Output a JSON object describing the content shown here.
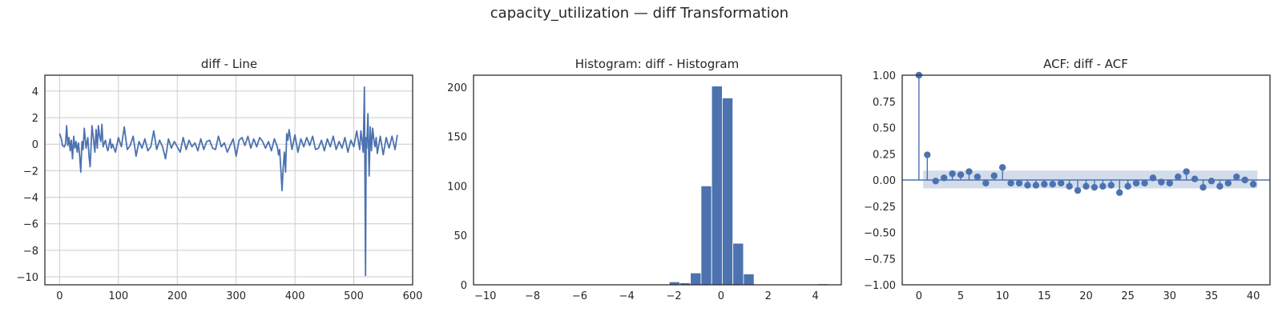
{
  "figure": {
    "suptitle": "capacity_utilization — diff Transformation"
  },
  "colors": {
    "series": "#4c72b0",
    "band": "#4c72b0",
    "grid": "#cccccc",
    "axis": "#262626"
  },
  "chart_data": [
    {
      "type": "line",
      "title": "diff - Line",
      "xlabel": "",
      "ylabel": "",
      "xlim": [
        -25,
        600
      ],
      "ylim": [
        -10.6,
        5.2
      ],
      "xticks": [
        0,
        100,
        200,
        300,
        400,
        500,
        600
      ],
      "yticks": [
        4,
        2,
        0,
        -2,
        -4,
        -6,
        -8,
        -10
      ],
      "grid": true,
      "series": [
        {
          "x": [
            0,
            3,
            5,
            8,
            10,
            12,
            14,
            16,
            18,
            20,
            22,
            24,
            26,
            28,
            30,
            32,
            34,
            36,
            38,
            40,
            42,
            45,
            48,
            50,
            52,
            55,
            58,
            60,
            62,
            64,
            66,
            68,
            70,
            72,
            74,
            76,
            78,
            80,
            82,
            84,
            86,
            88,
            90,
            95,
            100,
            105,
            110,
            115,
            120,
            125,
            130,
            135,
            140,
            145,
            150,
            155,
            160,
            165,
            170,
            175,
            180,
            185,
            190,
            195,
            200,
            205,
            210,
            215,
            220,
            225,
            230,
            235,
            240,
            245,
            250,
            255,
            260,
            265,
            270,
            275,
            280,
            285,
            290,
            295,
            300,
            305,
            310,
            315,
            320,
            325,
            330,
            335,
            340,
            345,
            350,
            355,
            360,
            365,
            370,
            372,
            374,
            376,
            378,
            380,
            382,
            384,
            386,
            388,
            390,
            395,
            400,
            405,
            410,
            415,
            420,
            425,
            430,
            435,
            440,
            445,
            450,
            455,
            460,
            465,
            470,
            475,
            480,
            485,
            490,
            495,
            500,
            505,
            510,
            512,
            514,
            516,
            518,
            520,
            521,
            522,
            524,
            526,
            528,
            530,
            532,
            534,
            536,
            538,
            540,
            545,
            550,
            555,
            560,
            565,
            570,
            574
          ],
          "y": [
            0.8,
            0.4,
            -0.1,
            -0.2,
            0.0,
            1.4,
            -0.1,
            0.5,
            -0.5,
            0.3,
            -1.1,
            0.6,
            -0.3,
            0.2,
            -0.6,
            0.1,
            -0.8,
            -2.1,
            0.2,
            -0.4,
            1.2,
            -0.3,
            0.5,
            -0.9,
            -1.7,
            1.4,
            0.2,
            -0.6,
            1.1,
            -0.3,
            1.4,
            0.6,
            0.2,
            1.5,
            -0.2,
            0.1,
            0.3,
            -0.2,
            -0.5,
            -0.1,
            0.4,
            -0.3,
            0.0,
            -0.6,
            0.5,
            -0.2,
            1.3,
            -0.4,
            -0.1,
            0.6,
            -0.9,
            0.2,
            -0.3,
            0.4,
            -0.5,
            -0.2,
            1.0,
            -0.4,
            0.3,
            -0.2,
            -1.1,
            0.4,
            -0.3,
            0.2,
            -0.2,
            -0.6,
            0.5,
            -0.4,
            0.3,
            -0.2,
            0.1,
            -0.5,
            0.4,
            -0.4,
            0.2,
            0.3,
            -0.3,
            -0.4,
            0.6,
            -0.2,
            0.1,
            -0.6,
            -0.1,
            0.4,
            -0.9,
            0.3,
            0.5,
            -0.1,
            0.6,
            -0.3,
            0.4,
            -0.2,
            0.5,
            0.2,
            -0.3,
            0.2,
            -0.5,
            0.4,
            -0.2,
            -0.8,
            -0.4,
            -1.9,
            -3.5,
            -1.8,
            -0.6,
            -2.1,
            0.8,
            0.3,
            1.1,
            -0.4,
            0.7,
            -0.6,
            0.4,
            -0.2,
            0.5,
            -0.1,
            0.6,
            -0.4,
            -0.3,
            0.3,
            -0.5,
            0.4,
            -0.2,
            0.6,
            -0.4,
            0.2,
            -0.3,
            0.5,
            -0.6,
            0.3,
            -0.2,
            1.0,
            -0.4,
            1.0,
            0.3,
            -0.6,
            4.3,
            -9.9,
            0.5,
            -0.3,
            2.3,
            -2.4,
            1.3,
            -0.5,
            1.2,
            0.4,
            -0.2,
            0.5,
            -0.7,
            0.6,
            -0.8,
            0.5,
            -0.3,
            0.6,
            -0.4,
            0.7
          ]
        }
      ]
    },
    {
      "type": "bar",
      "title": "Histogram: diff - Histogram",
      "xlabel": "",
      "ylabel": "",
      "xlim": [
        -10.5,
        5.1
      ],
      "ylim": [
        0,
        212
      ],
      "xticks": [
        -10,
        -8,
        -6,
        -4,
        -2,
        0,
        2,
        4
      ],
      "yticks": [
        0,
        50,
        100,
        150,
        200
      ],
      "grid": false,
      "bin_width": 0.45,
      "bins": [
        [
          -10.0,
          0
        ],
        [
          -9.55,
          0
        ],
        [
          -9.1,
          0
        ],
        [
          -8.65,
          0
        ],
        [
          -8.2,
          0
        ],
        [
          -7.75,
          0
        ],
        [
          -7.3,
          0
        ],
        [
          -6.85,
          0
        ],
        [
          -6.4,
          0
        ],
        [
          -5.95,
          0
        ],
        [
          -5.5,
          0
        ],
        [
          -5.05,
          0
        ],
        [
          -4.6,
          0
        ],
        [
          -4.15,
          0
        ],
        [
          -3.7,
          0
        ],
        [
          -3.25,
          0
        ],
        [
          -2.8,
          0
        ],
        [
          -2.35,
          0
        ],
        [
          -2.2,
          3
        ],
        [
          -1.75,
          2
        ],
        [
          -1.3,
          12
        ],
        [
          -0.85,
          100
        ],
        [
          -0.4,
          201
        ],
        [
          0.05,
          189
        ],
        [
          0.5,
          42
        ],
        [
          0.95,
          11
        ],
        [
          1.4,
          0
        ],
        [
          1.85,
          0
        ],
        [
          2.3,
          0
        ],
        [
          2.75,
          0
        ],
        [
          3.2,
          0
        ],
        [
          3.65,
          0
        ],
        [
          4.1,
          1
        ]
      ]
    },
    {
      "type": "scatter",
      "title": "ACF: diff - ACF",
      "xlabel": "",
      "ylabel": "",
      "xlim": [
        -2,
        42
      ],
      "ylim": [
        -1.0,
        1.0
      ],
      "xticks": [
        0,
        5,
        10,
        15,
        20,
        25,
        30,
        35,
        40
      ],
      "yticks": [
        1.0,
        0.75,
        0.5,
        0.25,
        0.0,
        -0.25,
        -0.5,
        -0.75,
        -1.0
      ],
      "ytick_labels": [
        "1.00",
        "0.75",
        "0.50",
        "0.25",
        "0.00",
        "−0.25",
        "−0.50",
        "−0.75",
        "−1.00"
      ],
      "grid": false,
      "confidence_band": {
        "from_lag": 0.5,
        "to_lag": 40.5,
        "lower": -0.08,
        "upper": 0.09
      },
      "lags": [
        0,
        1,
        2,
        3,
        4,
        5,
        6,
        7,
        8,
        9,
        10,
        11,
        12,
        13,
        14,
        15,
        16,
        17,
        18,
        19,
        20,
        21,
        22,
        23,
        24,
        25,
        26,
        27,
        28,
        29,
        30,
        31,
        32,
        33,
        34,
        35,
        36,
        37,
        38,
        39,
        40
      ],
      "values": [
        1.0,
        0.24,
        -0.01,
        0.02,
        0.06,
        0.05,
        0.08,
        0.03,
        -0.03,
        0.04,
        0.12,
        -0.03,
        -0.03,
        -0.05,
        -0.05,
        -0.04,
        -0.04,
        -0.03,
        -0.06,
        -0.1,
        -0.06,
        -0.07,
        -0.06,
        -0.05,
        -0.12,
        -0.06,
        -0.03,
        -0.03,
        0.02,
        -0.02,
        -0.03,
        0.03,
        0.08,
        0.01,
        -0.07,
        -0.01,
        -0.06,
        -0.03,
        0.03,
        0.0,
        -0.04
      ]
    }
  ]
}
